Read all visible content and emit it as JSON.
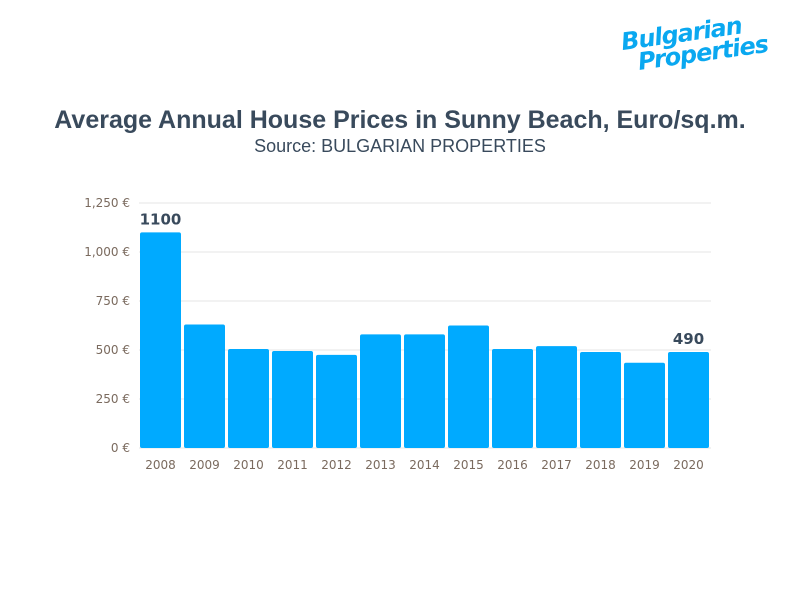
{
  "logo": {
    "line1": "Bulgarian",
    "line2": "Properties",
    "color": "#0aa8f0"
  },
  "chart_data": {
    "type": "bar",
    "title": "Average Annual House Prices in Sunny Beach, Euro/sq.m.",
    "subtitle": "Source: BULGARIAN PROPERTIES",
    "categories": [
      "2008",
      "2009",
      "2010",
      "2011",
      "2012",
      "2013",
      "2014",
      "2015",
      "2016",
      "2017",
      "2018",
      "2019",
      "2020"
    ],
    "values": [
      1100,
      630,
      505,
      495,
      475,
      580,
      580,
      625,
      505,
      520,
      490,
      435,
      490
    ],
    "data_labels": {
      "0": "1100",
      "12": "490"
    },
    "ylim": [
      0,
      1250
    ],
    "yticks": [
      0,
      250,
      500,
      750,
      1000,
      1250
    ],
    "ytick_labels": [
      "0 €",
      "250 €",
      "500 €",
      "750 €",
      "1,000 €",
      "1,250 €"
    ],
    "grid": true,
    "bar_color": "#00aaff"
  }
}
